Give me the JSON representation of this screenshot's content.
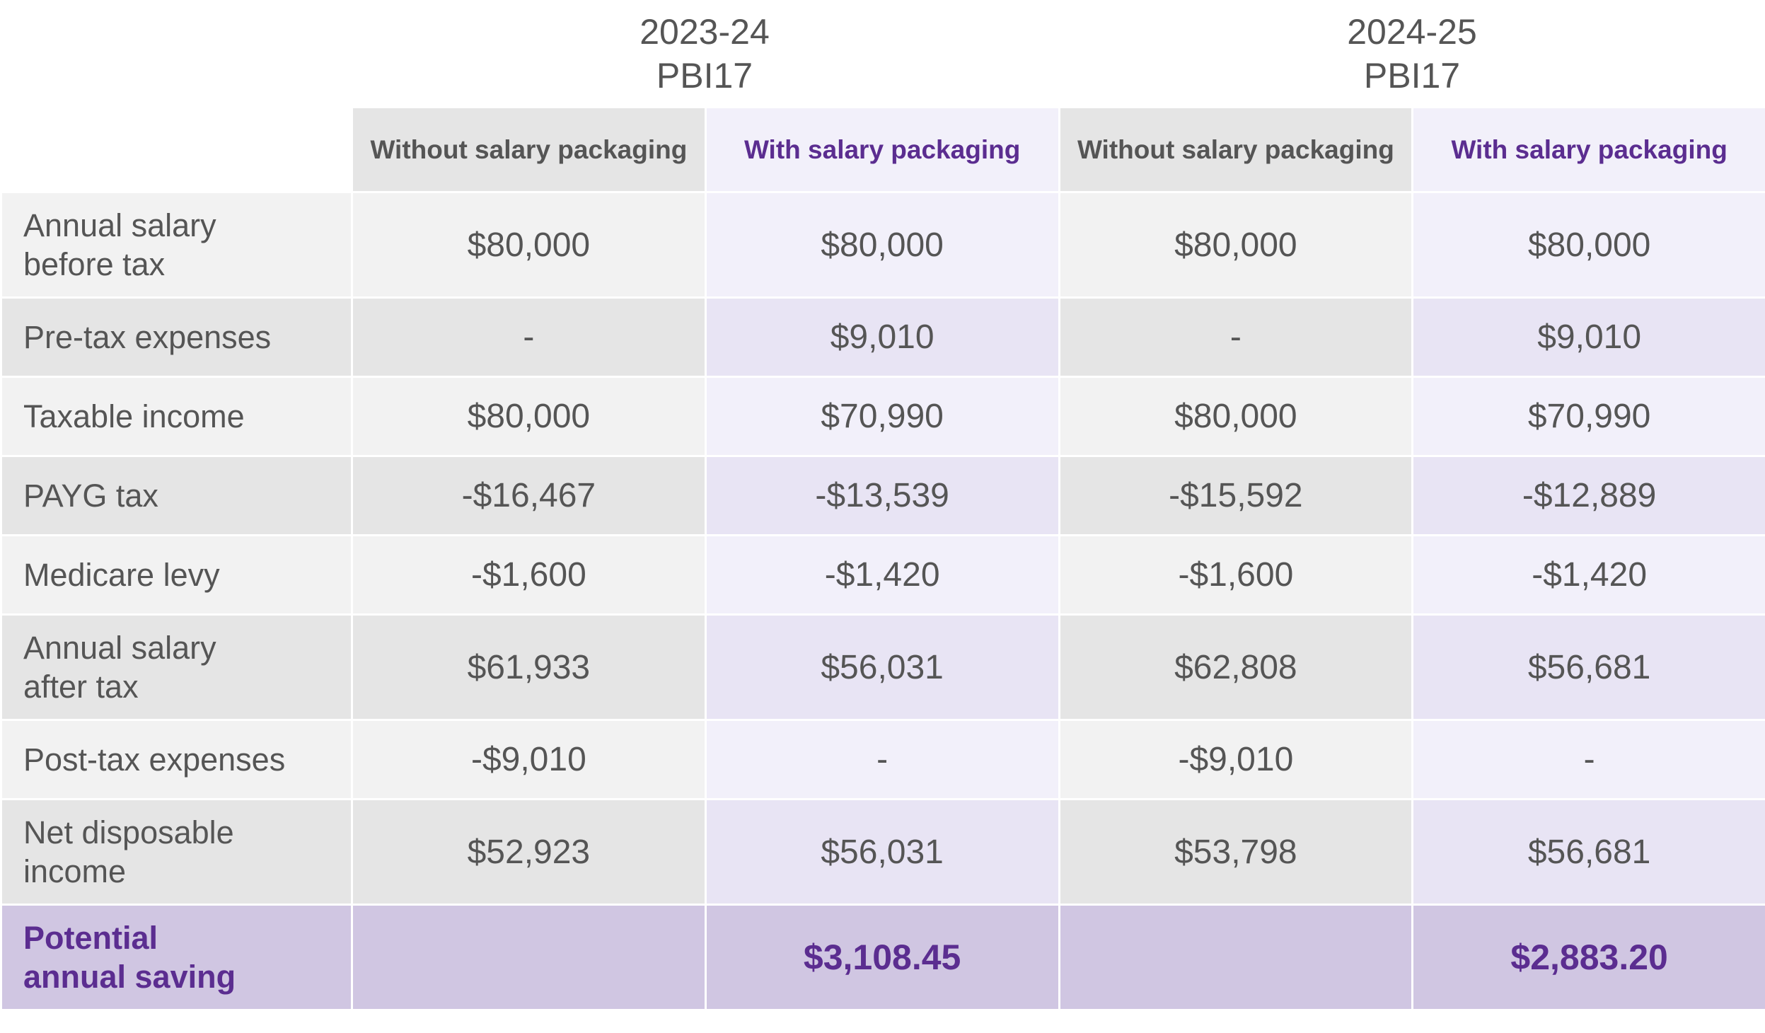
{
  "years": [
    {
      "period": "2023-24",
      "label": "PBI17"
    },
    {
      "period": "2024-25",
      "label": "PBI17"
    }
  ],
  "column_headers": {
    "without": "Without salary packaging",
    "with": "With salary packaging"
  },
  "rows": [
    {
      "label_line1": "Annual salary",
      "label_line2": "before tax",
      "values": [
        "$80,000",
        "$80,000",
        "$80,000",
        "$80,000"
      ]
    },
    {
      "label_line1": "Pre-tax expenses",
      "label_line2": "",
      "values": [
        "-",
        "$9,010",
        "-",
        "$9,010"
      ]
    },
    {
      "label_line1": "Taxable income",
      "label_line2": "",
      "values": [
        "$80,000",
        "$70,990",
        "$80,000",
        "$70,990"
      ]
    },
    {
      "label_line1": "PAYG tax",
      "label_line2": "",
      "values": [
        "-$16,467",
        "-$13,539",
        "-$15,592",
        "-$12,889"
      ]
    },
    {
      "label_line1": "Medicare levy",
      "label_line2": "",
      "values": [
        "-$1,600",
        "-$1,420",
        "-$1,600",
        "-$1,420"
      ]
    },
    {
      "label_line1": "Annual salary",
      "label_line2": "after tax",
      "values": [
        "$61,933",
        "$56,031",
        "$62,808",
        "$56,681"
      ]
    },
    {
      "label_line1": "Post-tax expenses",
      "label_line2": "",
      "values": [
        "-$9,010",
        "-",
        "-$9,010",
        "-"
      ]
    },
    {
      "label_line1": "Net disposable",
      "label_line2": "income",
      "values": [
        "$52,923",
        "$56,031",
        "$53,798",
        "$56,681"
      ]
    }
  ],
  "total": {
    "label_line1": "Potential",
    "label_line2": "annual saving",
    "values": [
      "",
      "$3,108.45",
      "",
      "$2,883.20"
    ]
  },
  "colors": {
    "accent_purple": "#5b2d90",
    "total_row_bg": "#d0c6e2",
    "with_col_light": "#f2f0fa",
    "with_col_dark": "#e8e4f4",
    "grey_light": "#f2f2f2",
    "grey_dark": "#e5e5e5",
    "text_grey": "#555555"
  }
}
